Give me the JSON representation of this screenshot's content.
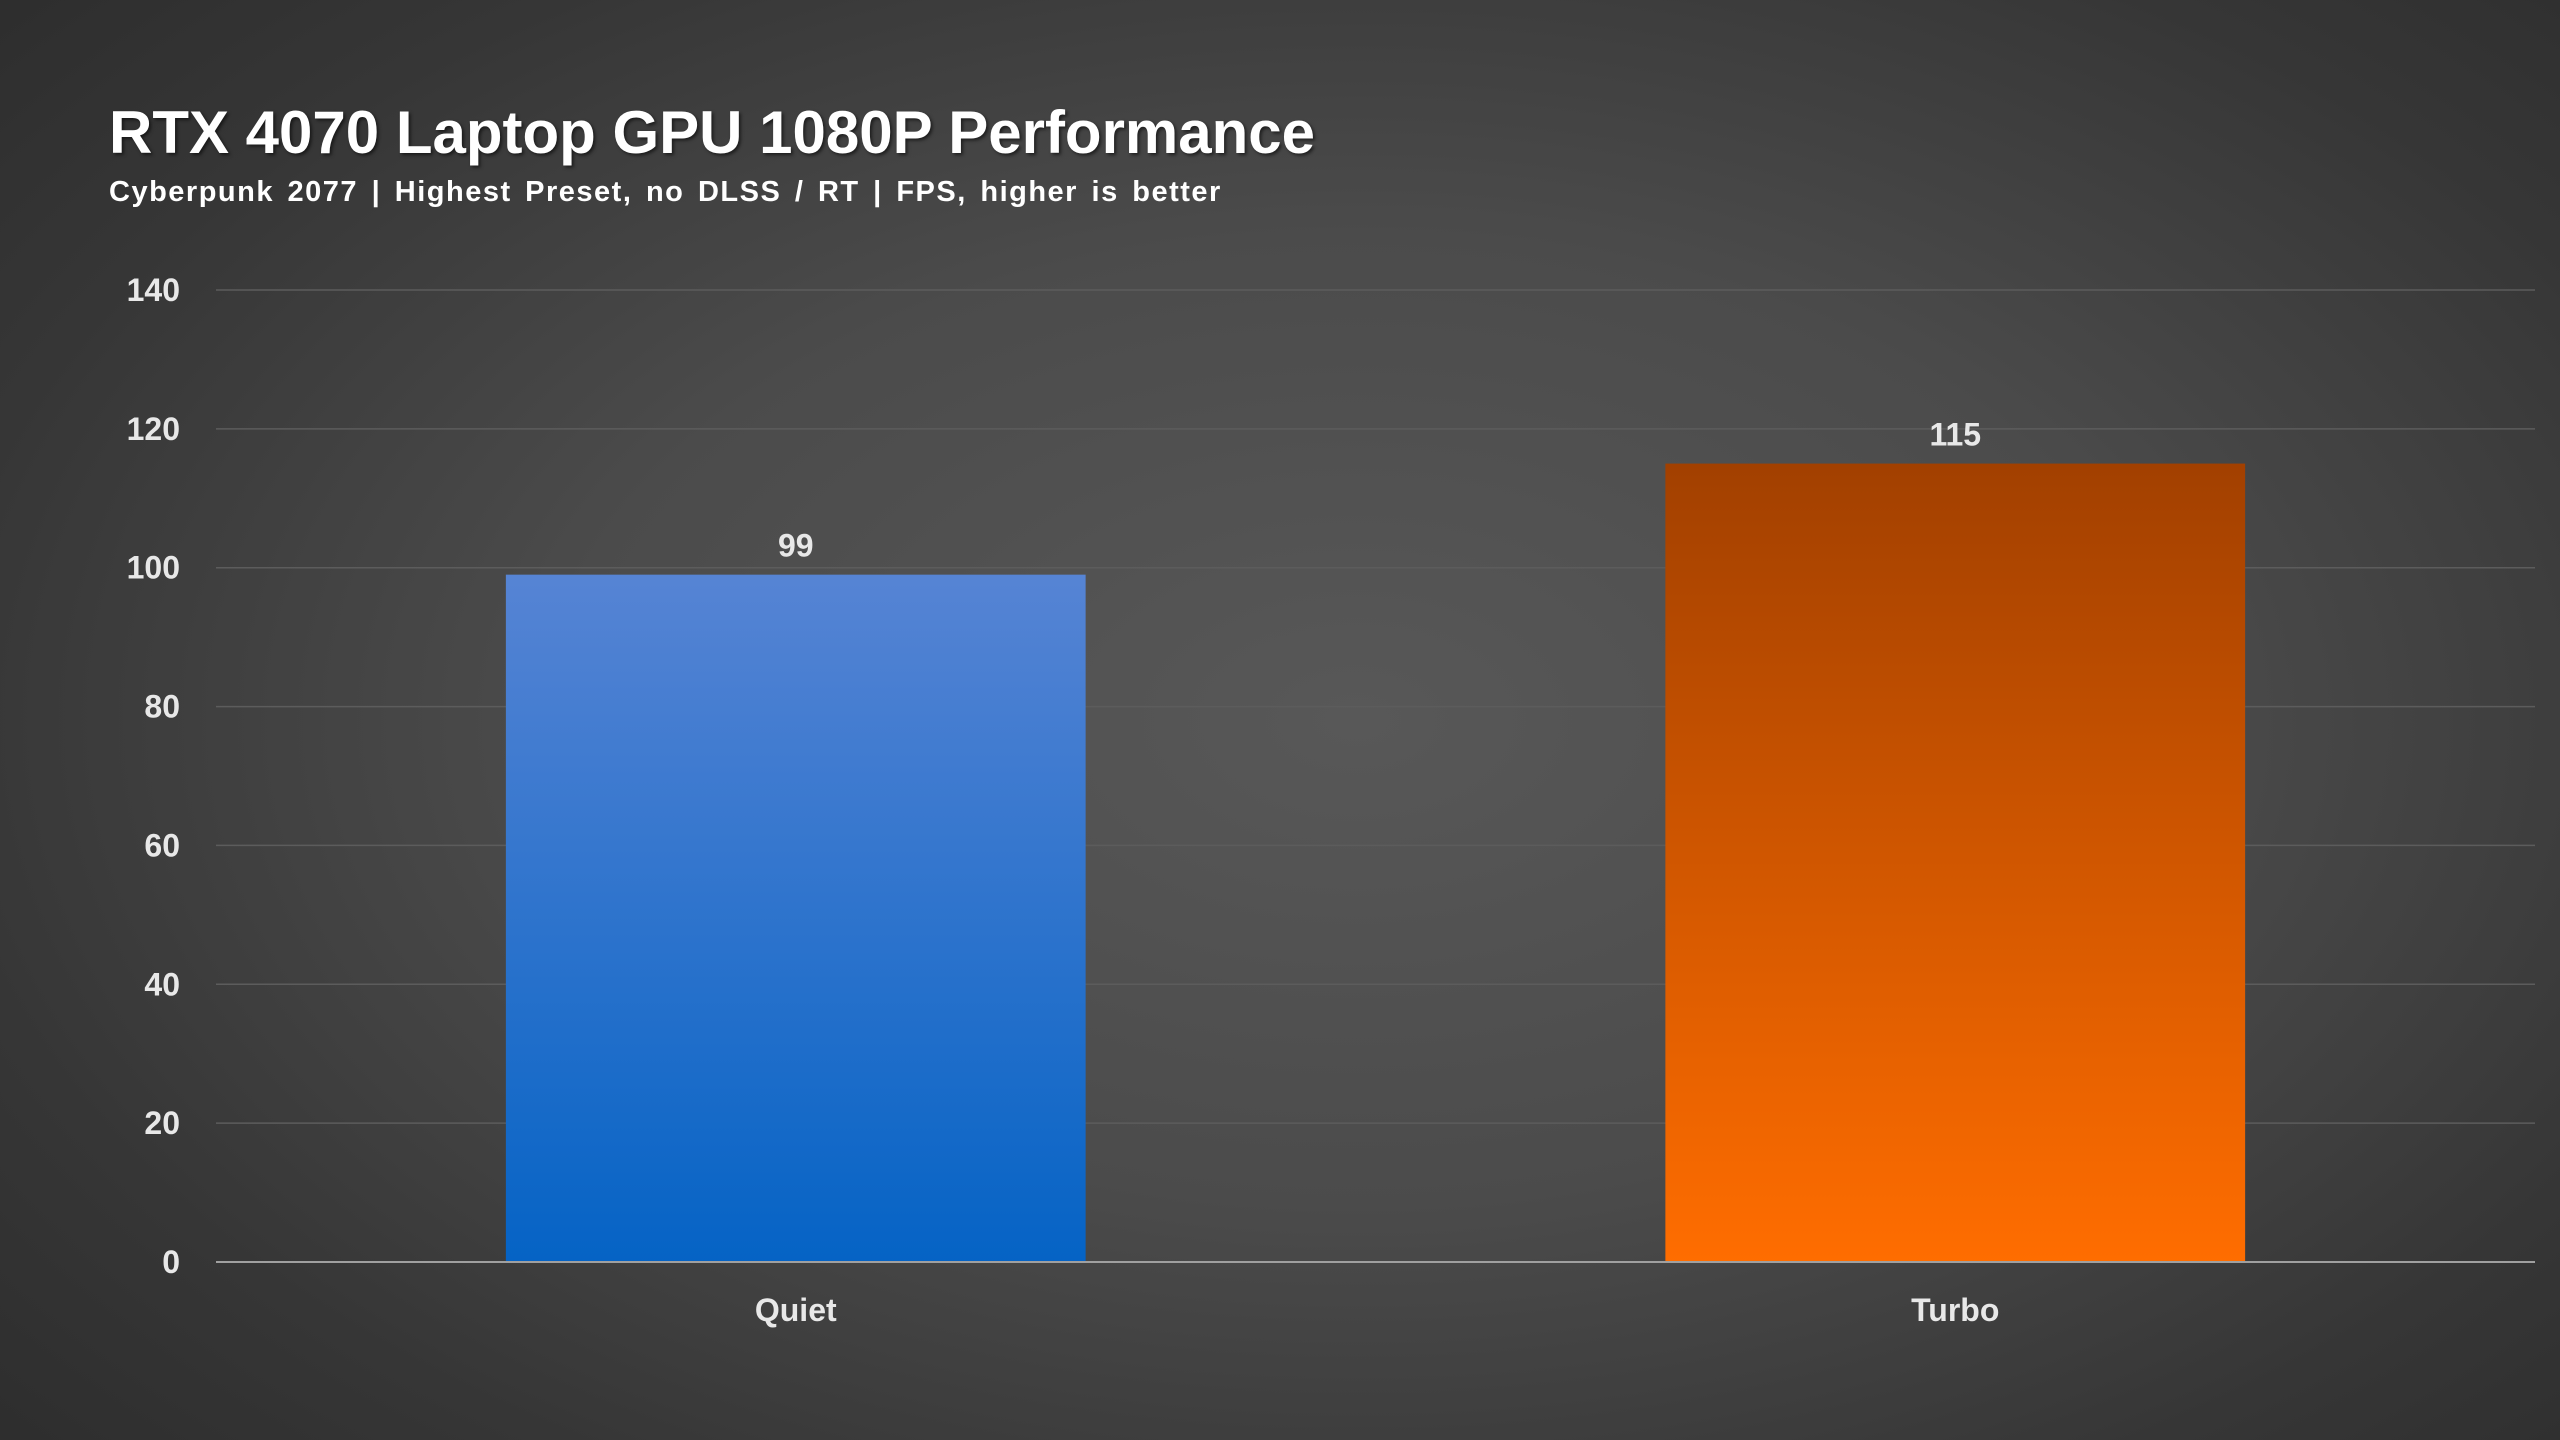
{
  "chart_data": {
    "type": "bar",
    "title": "RTX 4070 Laptop GPU 1080P Performance",
    "subtitle": "Cyberpunk 2077 | Highest Preset, no DLSS / RT | FPS, higher is better",
    "categories": [
      "Quiet",
      "Turbo"
    ],
    "values": [
      99,
      115
    ],
    "data_labels": [
      "99",
      "115"
    ],
    "ylim": [
      0,
      140
    ],
    "yticks": [
      0,
      20,
      40,
      60,
      80,
      100,
      120,
      140
    ],
    "grid": true,
    "legend": "none",
    "colors": {
      "Quiet": {
        "top": "#5684d4",
        "bottom": "#0563c5"
      },
      "Turbo": {
        "top": "#a24000",
        "bottom": "#ff6d00"
      }
    },
    "background": "#4b4b4b",
    "gridline_color": "#5c5c5c"
  }
}
